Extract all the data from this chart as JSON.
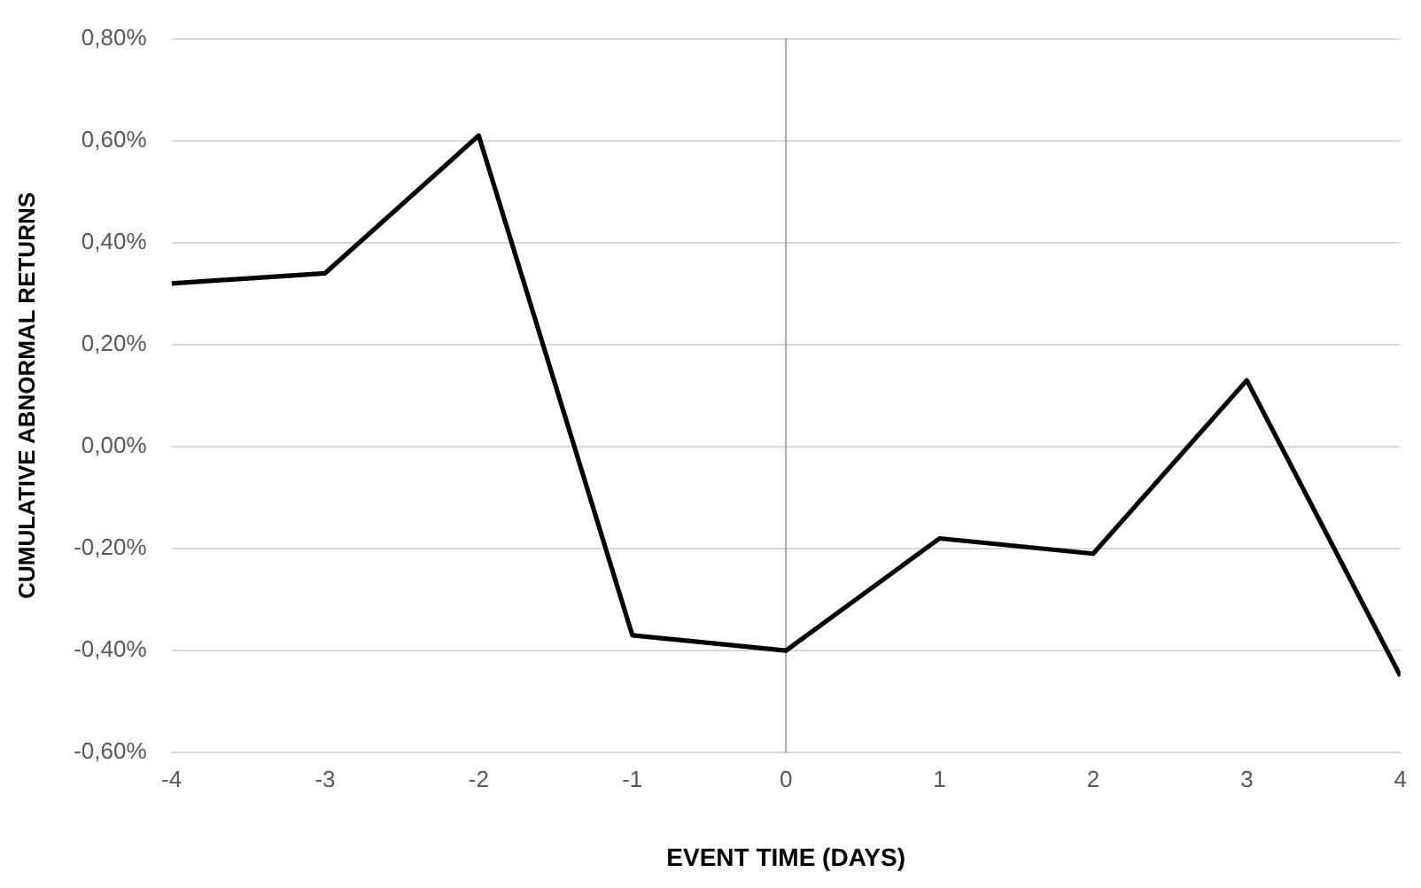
{
  "chart_data": {
    "type": "line",
    "xlabel": "EVENT TIME (DAYS)",
    "ylabel": "CUMULATIVE ABNORMAL RETURNS",
    "x": [
      -4,
      -3,
      -2,
      -1,
      0,
      1,
      2,
      3,
      4
    ],
    "series": [
      {
        "color": "#000000",
        "values": [
          0.32,
          0.34,
          0.61,
          -0.37,
          -0.4,
          -0.18,
          -0.21,
          0.13,
          -0.45
        ]
      }
    ],
    "xlim": [
      -4,
      4
    ],
    "xticks": [
      -4,
      -3,
      -2,
      -1,
      0,
      1,
      2,
      3,
      4
    ],
    "ylim": [
      -0.6,
      0.8
    ],
    "yticks": [
      {
        "value": -0.6,
        "label": "-0,60%"
      },
      {
        "value": -0.4,
        "label": "-0,40%"
      },
      {
        "value": -0.2,
        "label": "-0,20%"
      },
      {
        "value": 0,
        "label": "0,00%"
      },
      {
        "value": 0.2,
        "label": "0,20%"
      },
      {
        "value": 0.4,
        "label": "0,40%"
      },
      {
        "value": 0.6,
        "label": "0,60%"
      },
      {
        "value": 0.8,
        "label": "0,80%"
      }
    ],
    "ref_lines": [
      {
        "axis": "x",
        "value": 0,
        "color": "#a6a6a6"
      }
    ],
    "grid": "y",
    "legend": false,
    "marker": "none",
    "line_style": "solid"
  }
}
